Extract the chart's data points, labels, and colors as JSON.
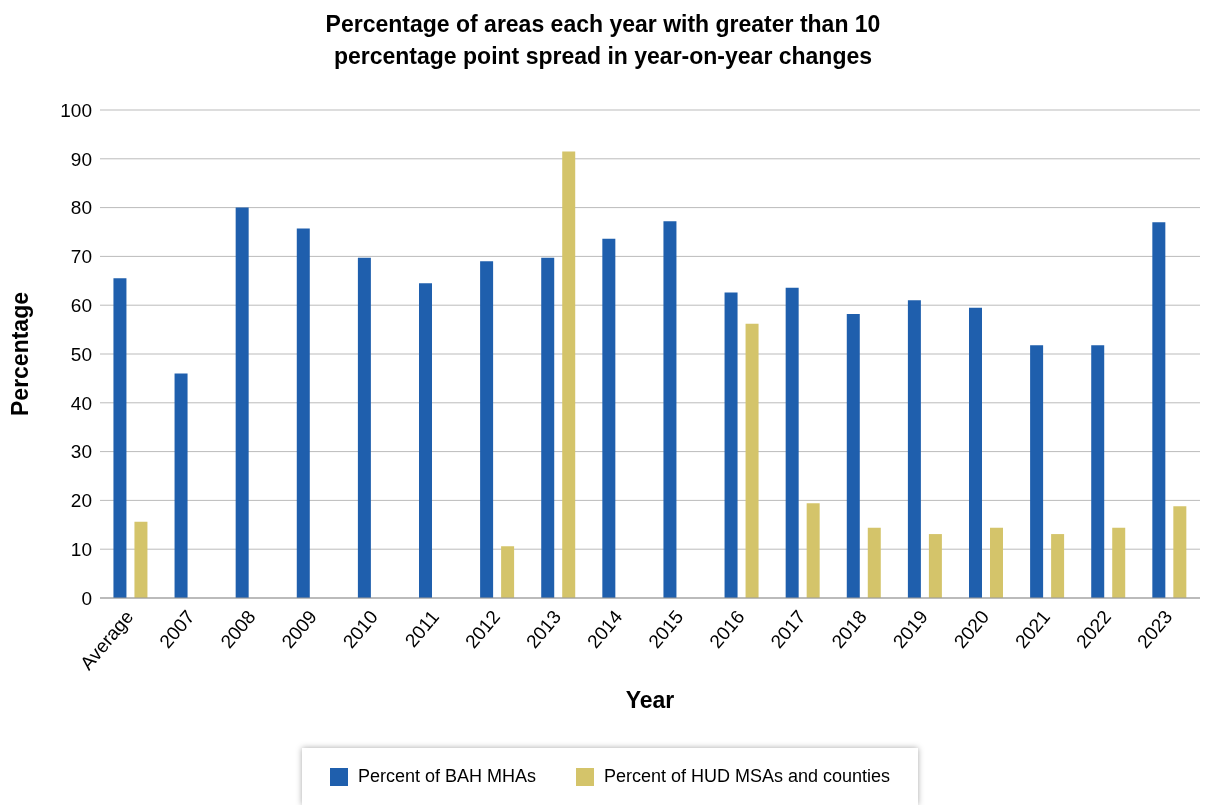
{
  "chart_data": {
    "type": "bar",
    "title": "Percentage of areas each year with greater than 10 percentage point spread in year-on-year changes",
    "xlabel": "Year",
    "ylabel": "Percentage",
    "categories": [
      "Average",
      "2007",
      "2008",
      "2009",
      "2010",
      "2011",
      "2012",
      "2013",
      "2014",
      "2015",
      "2016",
      "2017",
      "2018",
      "2019",
      "2020",
      "2021",
      "2022",
      "2023"
    ],
    "series": [
      {
        "name": "Percent of BAH MHAs",
        "color": "#1f5fad",
        "values": [
          65.5,
          46,
          80,
          75.7,
          69.7,
          64.5,
          69,
          69.7,
          73.6,
          77.2,
          62.6,
          63.6,
          58.2,
          61,
          59.5,
          51.8,
          51.8,
          77
        ]
      },
      {
        "name": "Percent of HUD MSAs and counties",
        "color": "#d4c46a",
        "values": [
          15.6,
          null,
          null,
          null,
          null,
          null,
          10.6,
          91.5,
          null,
          null,
          56.2,
          19.4,
          14.4,
          13.1,
          14.4,
          13.1,
          14.4,
          18.8
        ]
      }
    ],
    "ylim": [
      0,
      100
    ],
    "yticks": [
      0,
      10,
      20,
      30,
      40,
      50,
      60,
      70,
      80,
      90,
      100
    ],
    "grid": "y",
    "legend": "bottom"
  }
}
